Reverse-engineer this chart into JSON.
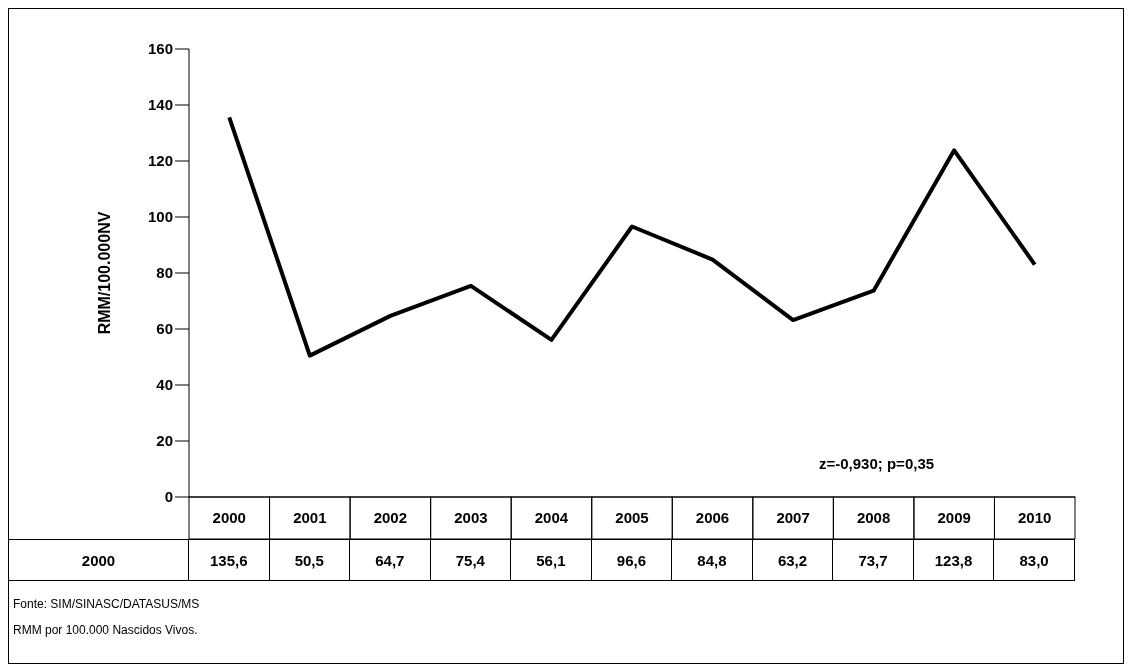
{
  "chart_data": {
    "type": "line",
    "ylabel": "RMM/100.000NV",
    "categories": [
      "2000",
      "2001",
      "2002",
      "2003",
      "2004",
      "2005",
      "2006",
      "2007",
      "2008",
      "2009",
      "2010"
    ],
    "series": [
      {
        "name": "2000",
        "color": "#000000",
        "values": [
          135.6,
          50.5,
          64.7,
          75.4,
          56.1,
          96.6,
          84.8,
          63.2,
          73.7,
          123.8,
          83.0
        ],
        "value_labels": [
          "135,6",
          "50,5",
          "64,7",
          "75,4",
          "56,1",
          "96,6",
          "84,8",
          "63,2",
          "73,7",
          "123,8",
          "83,0"
        ]
      }
    ],
    "ylim": [
      0,
      160
    ],
    "yticks": [
      0,
      20,
      40,
      60,
      80,
      100,
      120,
      140,
      160
    ],
    "legend": false,
    "marker": "none",
    "line_style": "solid",
    "annotations": [
      "z=-0,930; p=0,35",
      "Fonte: SIM/SINASC/DATASUS/MS",
      "RMM por 100.000 Nascidos Vivos."
    ]
  }
}
